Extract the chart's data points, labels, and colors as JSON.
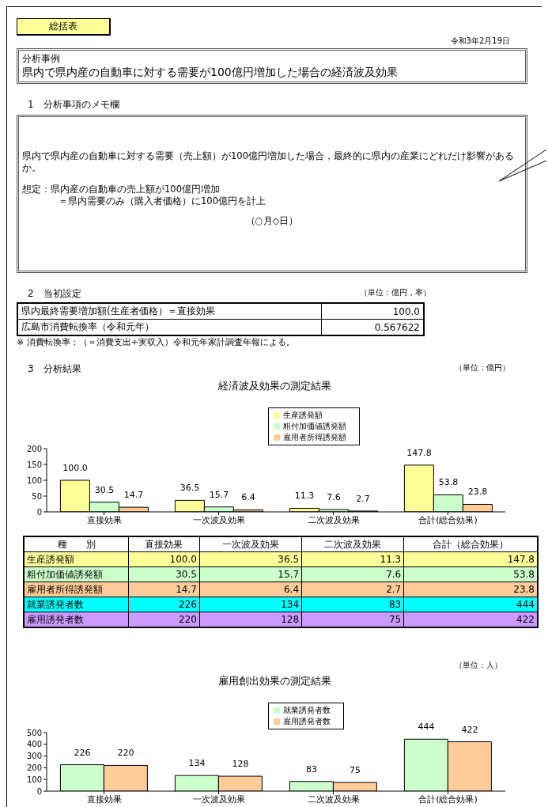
{
  "chart_data": [
    {
      "type": "other",
      "title": "県内で県内産の自動車に対する需要が100億円増加した場合の経済波及効果",
      "annotations": [
        "総括表",
        "令和3年2月19日",
        "分析事例",
        "1　分析事項のメモ欄",
        "県内で県内産の自動車に対する需要（売上額）が100億円増加した場合，最終的に県内の産業にどれだけ影響があるか。",
        "想定：県内産の自動車の売上額が100億円増加",
        "＝県内需要のみ（購入者価格）に100億円を計上",
        "（○月◇日）",
        "2　当初設定",
        "（単位：億円，率）",
        "県内最終需要増加額(生産者価格）＝直接効果",
        "100.0",
        "広島市消費転換率（令和元年）",
        "0.567622",
        "※ 消費転換率：（＝消費支出÷実収入）令和元年家計調査年報による。",
        "3　分析結果",
        "（単位：億円）"
      ]
    },
    {
      "type": "bar",
      "title": "経済波及効果の測定結果",
      "categories": [
        "直接効果",
        "一次波及効果",
        "二次波及効果",
        "合計(総合効果)"
      ],
      "ylim": [
        0,
        200
      ],
      "yticks": [
        0,
        50,
        100,
        150,
        200
      ],
      "legend": "top",
      "series": [
        {
          "name": "生産誘発額",
          "color": "#ffff99",
          "values": [
            100.0,
            36.5,
            11.3,
            147.8
          ],
          "value_labels": [
            "100.0",
            "36.5",
            "11.3",
            "147.8"
          ]
        },
        {
          "name": "粗付加価値誘発額",
          "color": "#ccffcc",
          "values": [
            30.5,
            15.7,
            7.6,
            53.8
          ],
          "value_labels": [
            "30.5",
            "15.7",
            "7.6",
            "53.8"
          ]
        },
        {
          "name": "雇用者所得誘発額",
          "color": "#ffcc99",
          "values": [
            14.7,
            6.4,
            2.7,
            23.8
          ],
          "value_labels": [
            "14.7",
            "6.4",
            "2.7",
            "23.8"
          ]
        }
      ]
    },
    {
      "type": "other",
      "categories": [
        "種　　別",
        "直接効果",
        "一次波及効果",
        "二次波及効果",
        "合計（総合効果）"
      ],
      "y_categories": [
        "生産誘発額",
        "粗付加価値誘発額",
        "雇用者所得誘発額",
        "就業誘発者数",
        "雇用誘発者数"
      ],
      "colors": [
        "#ffff99",
        "#ccffcc",
        "#ffcc99",
        "#00ffff",
        "#cc99ff"
      ],
      "cell_labels": [
        [
          "100.0",
          "36.5",
          "11.3",
          "147.8"
        ],
        [
          "30.5",
          "15.7",
          "7.6",
          "53.8"
        ],
        [
          "14.7",
          "6.4",
          "2.7",
          "23.8"
        ],
        [
          "226",
          "134",
          "83",
          "444"
        ],
        [
          "220",
          "128",
          "75",
          "422"
        ]
      ]
    },
    {
      "type": "bar",
      "title": "雇用創出効果の測定結果",
      "annotations": [
        "（単位：人）"
      ],
      "categories": [
        "直接効果",
        "一次波及効果",
        "二次波及効果",
        "合計(総合効果)"
      ],
      "ylim": [
        0,
        500
      ],
      "yticks": [
        0,
        100,
        200,
        300,
        400,
        500
      ],
      "legend": "top",
      "data_labels": true,
      "series": [
        {
          "name": "就業誘発者数",
          "color": "#ccffcc",
          "values": [
            226,
            134,
            83,
            444
          ]
        },
        {
          "name": "雇用誘発者数",
          "color": "#ffcc99",
          "values": [
            220,
            128,
            75,
            422
          ]
        }
      ]
    }
  ]
}
